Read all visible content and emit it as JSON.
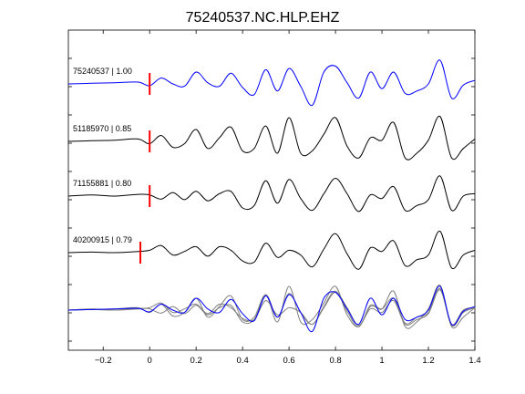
{
  "chart_data": {
    "type": "line",
    "title": "75240537.NC.HLP.EHZ",
    "xlabel": "",
    "ylabel": "",
    "xlim": [
      -0.35,
      1.4
    ],
    "xticks": [
      -0.2,
      0,
      0.2,
      0.4,
      0.6,
      0.8,
      1,
      1.2,
      1.4
    ],
    "xtick_labels": [
      "−0.2",
      "0",
      "0.2",
      "0.4",
      "0.6",
      "0.8",
      "1",
      "1.2",
      "1.4"
    ],
    "grid": false,
    "legend": "none",
    "series": [
      {
        "label": "75240537 | 1.00",
        "color": "#0000ff",
        "pick_time": 0.0,
        "x": [
          -0.35,
          -0.25,
          -0.15,
          -0.05,
          0.0,
          0.05,
          0.1,
          0.15,
          0.2,
          0.25,
          0.3,
          0.35,
          0.4,
          0.45,
          0.5,
          0.55,
          0.6,
          0.65,
          0.7,
          0.75,
          0.8,
          0.85,
          0.9,
          0.95,
          1.0,
          1.05,
          1.1,
          1.15,
          1.2,
          1.25,
          1.3,
          1.35,
          1.4
        ],
        "y": [
          0.0,
          0.05,
          0.1,
          0.15,
          -0.15,
          0.5,
          0.0,
          -0.2,
          1.0,
          0.1,
          -0.2,
          0.9,
          -0.3,
          -0.9,
          1.2,
          -0.6,
          1.3,
          -0.2,
          -1.8,
          1.0,
          1.5,
          0.1,
          -1.2,
          1.0,
          -0.4,
          1.0,
          -0.8,
          -0.6,
          0.0,
          2.0,
          -1.2,
          -0.1,
          0.3
        ]
      },
      {
        "label": "51185970 | 0.85",
        "color": "#000000",
        "pick_time": 0.0,
        "x": [
          -0.35,
          -0.25,
          -0.15,
          -0.05,
          0.0,
          0.05,
          0.1,
          0.15,
          0.2,
          0.25,
          0.3,
          0.35,
          0.4,
          0.45,
          0.5,
          0.55,
          0.6,
          0.65,
          0.7,
          0.75,
          0.8,
          0.85,
          0.9,
          0.95,
          1.0,
          1.05,
          1.1,
          1.15,
          1.2,
          1.25,
          1.3,
          1.35,
          1.4
        ],
        "y": [
          0.0,
          0.05,
          0.1,
          0.2,
          -0.2,
          0.5,
          -0.5,
          -0.2,
          1.0,
          -0.6,
          0.3,
          1.2,
          -0.8,
          -0.6,
          1.3,
          -1.0,
          2.0,
          -1.0,
          -0.8,
          0.6,
          2.0,
          -0.4,
          -1.4,
          0.3,
          0.1,
          1.6,
          -1.4,
          -1.0,
          0.1,
          2.1,
          -1.4,
          -0.6,
          0.2
        ]
      },
      {
        "label": "71155881 | 0.80",
        "color": "#000000",
        "pick_time": 0.0,
        "x": [
          -0.35,
          -0.25,
          -0.15,
          -0.05,
          0.0,
          0.05,
          0.1,
          0.15,
          0.2,
          0.25,
          0.3,
          0.35,
          0.4,
          0.45,
          0.5,
          0.55,
          0.6,
          0.65,
          0.7,
          0.75,
          0.8,
          0.85,
          0.9,
          0.95,
          1.0,
          1.05,
          1.1,
          1.15,
          1.2,
          1.25,
          1.3,
          1.35,
          1.4
        ],
        "y": [
          0.0,
          0.1,
          0.0,
          0.15,
          0.1,
          -0.25,
          0.3,
          -0.3,
          0.4,
          -0.4,
          0.2,
          0.4,
          -1.0,
          -0.8,
          1.3,
          -0.6,
          1.4,
          -0.2,
          -1.2,
          0.2,
          1.5,
          0.2,
          -1.3,
          0.1,
          -0.2,
          0.8,
          -1.2,
          -0.8,
          -0.3,
          1.7,
          -1.2,
          0.0,
          0.2
        ]
      },
      {
        "label": "40200915 | 0.79",
        "color": "#000000",
        "pick_time": -0.04,
        "x": [
          -0.35,
          -0.25,
          -0.15,
          -0.05,
          0.0,
          0.05,
          0.1,
          0.15,
          0.2,
          0.25,
          0.3,
          0.35,
          0.4,
          0.45,
          0.5,
          0.55,
          0.6,
          0.65,
          0.7,
          0.75,
          0.8,
          0.85,
          0.9,
          0.95,
          1.0,
          1.05,
          1.1,
          1.15,
          1.2,
          1.25,
          1.3,
          1.35,
          1.4
        ],
        "y": [
          0.0,
          0.05,
          0.0,
          0.1,
          0.2,
          0.6,
          -0.2,
          0.1,
          0.5,
          -0.3,
          0.5,
          0.2,
          -0.7,
          -0.8,
          0.8,
          -0.4,
          0.2,
          -0.2,
          -1.2,
          0.3,
          1.6,
          -0.1,
          -1.4,
          0.4,
          0.1,
          1.0,
          -1.1,
          -0.6,
          -0.2,
          1.8,
          -1.3,
          -0.2,
          0.2
        ]
      }
    ]
  },
  "trace_labels": [
    "75240537 | 1.00",
    "51185970 | 0.85",
    "71155881 | 0.80",
    "40200915 | 0.79"
  ]
}
